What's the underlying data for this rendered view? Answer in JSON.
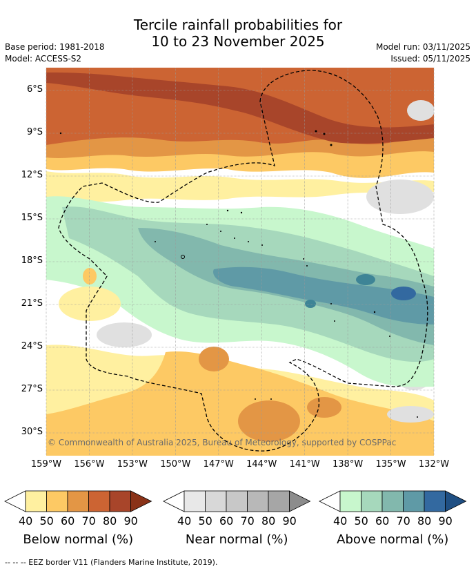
{
  "title": {
    "line1": "Tercile rainfall probabilities for",
    "line2": "10 to 23 November 2025"
  },
  "meta": {
    "base_period": "Base period: 1981-2018",
    "model": "Model: ACCESS-S2",
    "model_run": "Model run: 03/11/2025",
    "issued": "Issued: 05/11/2025"
  },
  "map": {
    "lon_labels": [
      "159°W",
      "156°W",
      "153°W",
      "150°W",
      "147°W",
      "144°W",
      "141°W",
      "138°W",
      "135°W",
      "132°W"
    ],
    "lat_labels": [
      "6°S",
      "9°S",
      "12°S",
      "15°S",
      "18°S",
      "21°S",
      "24°S",
      "27°S",
      "30°S"
    ],
    "copyright": "© Commonwealth of Australia 2025, Bureau of Meteorology, supported by COSPPac"
  },
  "colorbars": [
    {
      "title": "Below normal (%)",
      "ticks": [
        "40",
        "50",
        "60",
        "70",
        "80",
        "90"
      ],
      "colors": [
        "#fff0a0",
        "#fdc964",
        "#e39645",
        "#cc6433",
        "#a8452a",
        "#8a3218"
      ]
    },
    {
      "title": "Near normal (%)",
      "ticks": [
        "40",
        "50",
        "60",
        "70",
        "80",
        "90"
      ],
      "colors": [
        "#e8e8e8",
        "#d8d8d8",
        "#c8c8c8",
        "#b8b8b8",
        "#a6a6a6",
        "#8c8c8c"
      ]
    },
    {
      "title": "Above normal (%)",
      "ticks": [
        "40",
        "50",
        "60",
        "70",
        "80",
        "90"
      ],
      "colors": [
        "#c8f7cd",
        "#a6d8bc",
        "#82b8ad",
        "#5f9aa6",
        "#3369a0",
        "#1f4f83"
      ]
    }
  ],
  "footer": "--  --  -- EEZ border V11 (Flanders Marine Institute, 2019)."
}
